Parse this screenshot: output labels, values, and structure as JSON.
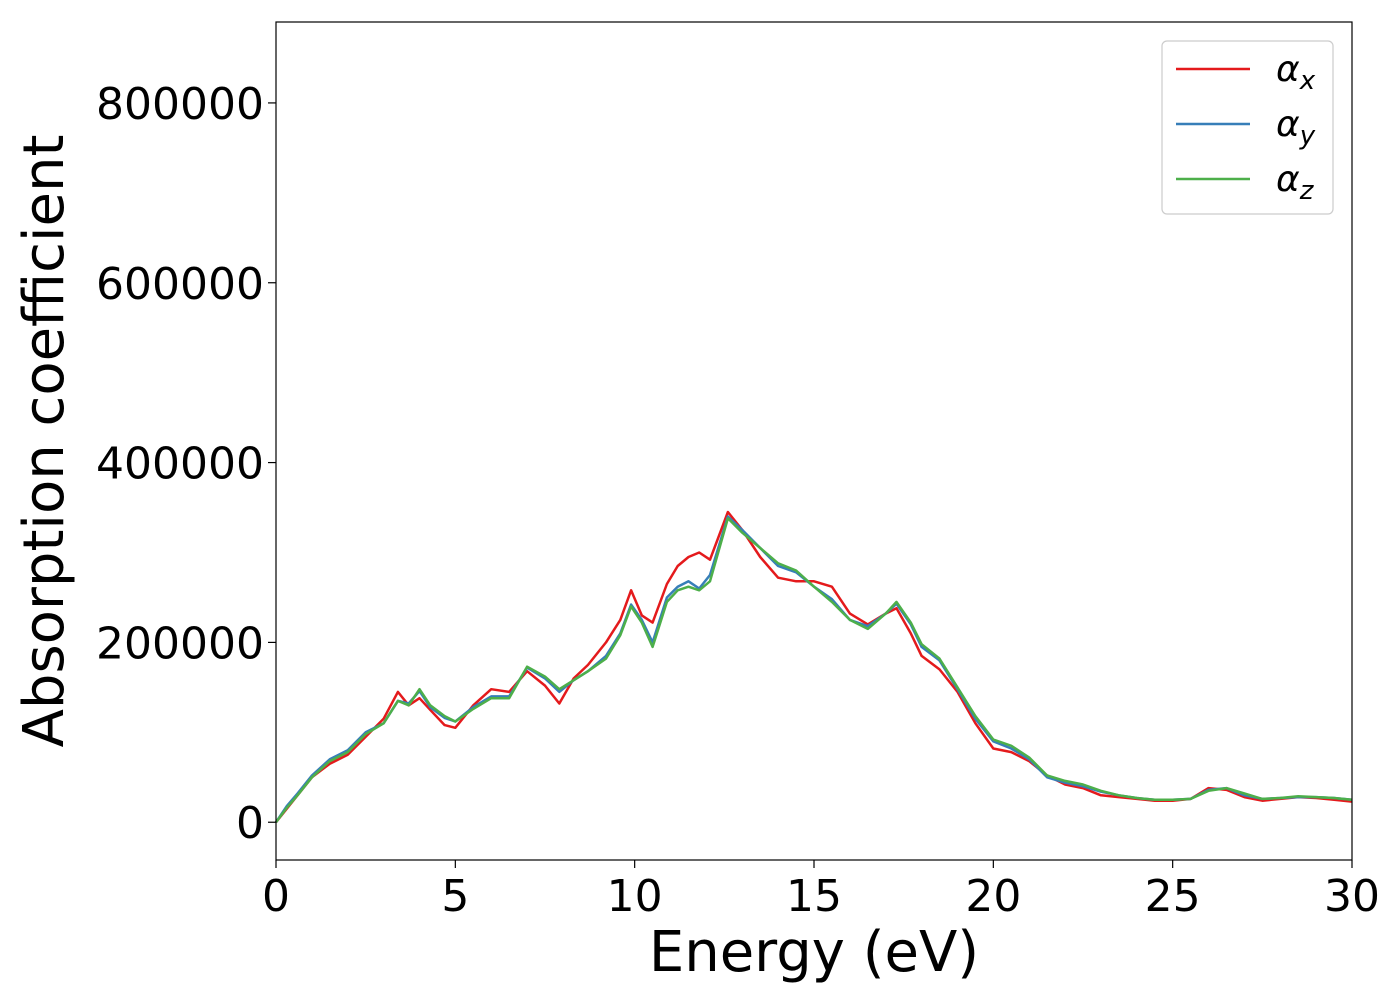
{
  "chart_data": {
    "type": "line",
    "title": "",
    "xlabel": "Energy (eV)",
    "ylabel": "Absorption coefficient",
    "xlim": [
      0,
      30
    ],
    "ylim": [
      -42000,
      890000
    ],
    "xticks": [
      0,
      5,
      10,
      15,
      20,
      25,
      30
    ],
    "xtick_labels": [
      "0",
      "5",
      "10",
      "15",
      "20",
      "25",
      "30"
    ],
    "yticks": [
      0,
      200000,
      400000,
      600000,
      800000
    ],
    "ytick_labels": [
      "0",
      "200000",
      "400000",
      "600000",
      "800000"
    ],
    "grid": false,
    "legend_position": "top-right",
    "series": [
      {
        "name": "α",
        "subscript": "x",
        "color": "#e41a1c",
        "x": [
          0,
          0.3,
          0.6,
          1.0,
          1.5,
          2.0,
          2.5,
          3.0,
          3.4,
          3.7,
          4.0,
          4.3,
          4.7,
          5.0,
          5.5,
          6.0,
          6.5,
          7.0,
          7.5,
          7.9,
          8.3,
          8.7,
          9.2,
          9.6,
          9.9,
          10.2,
          10.5,
          10.9,
          11.2,
          11.5,
          11.8,
          12.1,
          12.6,
          13.0,
          13.5,
          14.0,
          14.5,
          15.0,
          15.5,
          16.0,
          16.5,
          17.0,
          17.3,
          17.7,
          18.0,
          18.5,
          19.0,
          19.5,
          20.0,
          20.5,
          21.0,
          21.5,
          22.0,
          22.5,
          23.0,
          23.5,
          24.0,
          24.5,
          25.0,
          25.5,
          26.0,
          26.5,
          27.0,
          27.5,
          28.0,
          28.5,
          29.0,
          29.5,
          30.0
        ],
        "y": [
          0,
          15000,
          30000,
          50000,
          65000,
          75000,
          95000,
          115000,
          145000,
          130000,
          138000,
          125000,
          108000,
          105000,
          130000,
          148000,
          145000,
          168000,
          152000,
          132000,
          160000,
          175000,
          200000,
          225000,
          258000,
          230000,
          222000,
          265000,
          285000,
          295000,
          300000,
          292000,
          345000,
          325000,
          295000,
          272000,
          268000,
          268000,
          262000,
          232000,
          220000,
          232000,
          238000,
          210000,
          185000,
          170000,
          145000,
          110000,
          82000,
          78000,
          68000,
          52000,
          42000,
          38000,
          30000,
          28000,
          26000,
          24000,
          24000,
          26000,
          38000,
          36000,
          28000,
          24000,
          26000,
          28000,
          27000,
          25000,
          23000
        ]
      },
      {
        "name": "α",
        "subscript": "y",
        "color": "#377eb8",
        "x": [
          0,
          0.3,
          0.6,
          1.0,
          1.5,
          2.0,
          2.5,
          3.0,
          3.4,
          3.7,
          4.0,
          4.3,
          4.7,
          5.0,
          5.5,
          6.0,
          6.5,
          7.0,
          7.5,
          7.9,
          8.3,
          8.7,
          9.2,
          9.6,
          9.9,
          10.2,
          10.5,
          10.9,
          11.2,
          11.5,
          11.8,
          12.1,
          12.6,
          13.0,
          13.5,
          14.0,
          14.5,
          15.0,
          15.5,
          16.0,
          16.5,
          17.0,
          17.3,
          17.7,
          18.0,
          18.5,
          19.0,
          19.5,
          20.0,
          20.5,
          21.0,
          21.5,
          22.0,
          22.5,
          23.0,
          23.5,
          24.0,
          24.5,
          25.0,
          25.5,
          26.0,
          26.5,
          27.0,
          27.5,
          28.0,
          28.5,
          29.0,
          29.5,
          30.0
        ],
        "y": [
          0,
          18000,
          32000,
          52000,
          70000,
          80000,
          100000,
          110000,
          135000,
          132000,
          146000,
          128000,
          116000,
          112000,
          128000,
          140000,
          140000,
          172000,
          160000,
          145000,
          158000,
          168000,
          185000,
          210000,
          242000,
          225000,
          200000,
          250000,
          262000,
          268000,
          260000,
          275000,
          340000,
          325000,
          305000,
          285000,
          278000,
          262000,
          248000,
          225000,
          218000,
          232000,
          243000,
          220000,
          195000,
          180000,
          148000,
          115000,
          90000,
          82000,
          70000,
          50000,
          44000,
          40000,
          34000,
          30000,
          27000,
          25000,
          25000,
          26000,
          36000,
          38000,
          30000,
          26000,
          27000,
          28000,
          28000,
          27000,
          25000
        ]
      },
      {
        "name": "α",
        "subscript": "z",
        "color": "#4daf4a",
        "x": [
          0,
          0.3,
          0.6,
          1.0,
          1.5,
          2.0,
          2.5,
          3.0,
          3.4,
          3.7,
          4.0,
          4.3,
          4.7,
          5.0,
          5.5,
          6.0,
          6.5,
          7.0,
          7.5,
          7.9,
          8.3,
          8.7,
          9.2,
          9.6,
          9.9,
          10.2,
          10.5,
          10.9,
          11.2,
          11.5,
          11.8,
          12.1,
          12.6,
          13.0,
          13.5,
          14.0,
          14.5,
          15.0,
          15.5,
          16.0,
          16.5,
          17.0,
          17.3,
          17.7,
          18.0,
          18.5,
          19.0,
          19.5,
          20.0,
          20.5,
          21.0,
          21.5,
          22.0,
          22.5,
          23.0,
          23.5,
          24.0,
          24.5,
          25.0,
          25.5,
          26.0,
          26.5,
          27.0,
          27.5,
          28.0,
          28.5,
          29.0,
          29.5,
          30.0
        ],
        "y": [
          0,
          16000,
          30000,
          50000,
          68000,
          78000,
          98000,
          110000,
          135000,
          130000,
          148000,
          130000,
          118000,
          112000,
          126000,
          138000,
          138000,
          173000,
          162000,
          148000,
          158000,
          168000,
          182000,
          208000,
          240000,
          222000,
          195000,
          245000,
          258000,
          262000,
          258000,
          268000,
          338000,
          322000,
          305000,
          288000,
          280000,
          262000,
          245000,
          225000,
          215000,
          232000,
          245000,
          222000,
          198000,
          182000,
          150000,
          118000,
          92000,
          85000,
          72000,
          52000,
          46000,
          42000,
          35000,
          30000,
          27000,
          25000,
          25000,
          26000,
          35000,
          38000,
          32000,
          26000,
          27000,
          29000,
          28000,
          27000,
          25000
        ]
      }
    ]
  }
}
